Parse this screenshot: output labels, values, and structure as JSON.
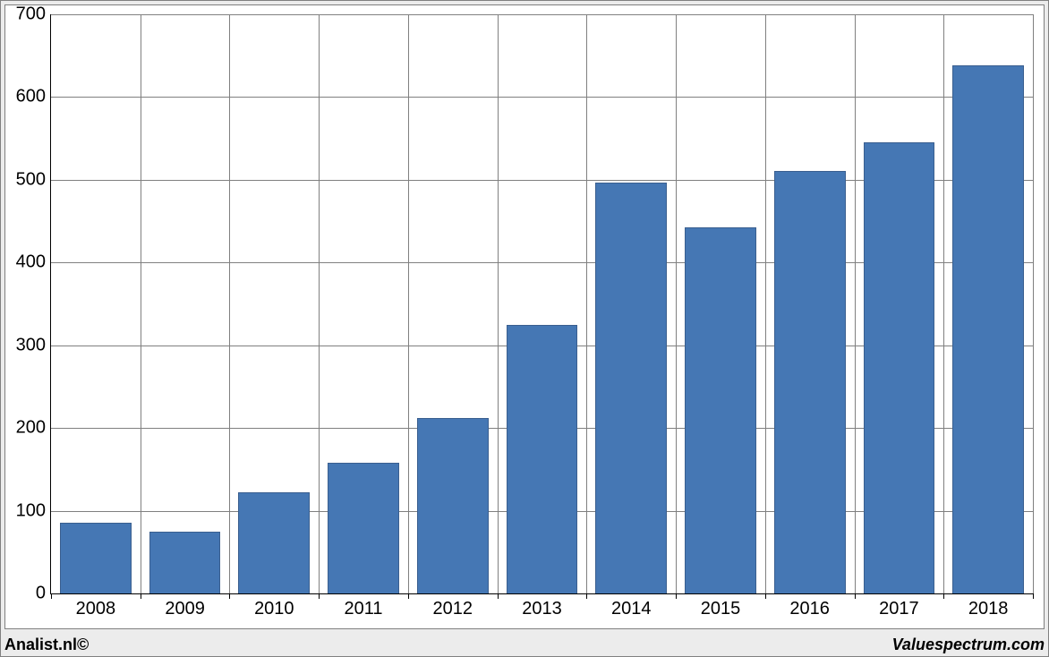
{
  "chart": {
    "type": "bar",
    "categories": [
      "2008",
      "2009",
      "2010",
      "2011",
      "2012",
      "2013",
      "2014",
      "2015",
      "2016",
      "2017",
      "2018"
    ],
    "values": [
      85,
      75,
      122,
      158,
      212,
      325,
      497,
      442,
      511,
      545,
      638
    ],
    "bar_color": "#4577b4",
    "bar_border_color": "#3a5f8f",
    "bar_width_ratio": 0.8,
    "grid_color": "#808080",
    "background_color": "#ffffff",
    "outer_background": "#ececec",
    "ylim": [
      0,
      700
    ],
    "ytick_step": 100,
    "yticks": [
      0,
      100,
      200,
      300,
      400,
      500,
      600,
      700
    ],
    "label_fontsize": 20,
    "label_color": "#000000"
  },
  "footer": {
    "left": "Analist.nl©",
    "right": "Valuespectrum.com"
  }
}
